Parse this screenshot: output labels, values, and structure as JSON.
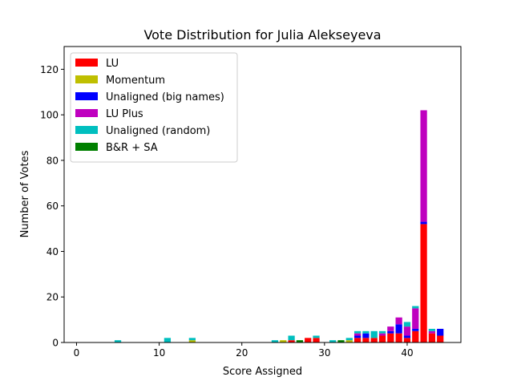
{
  "chart_data": {
    "type": "bar",
    "stacked": true,
    "title": "Vote Distribution for Julia Alekseyeva",
    "xlabel": "Score Assigned",
    "ylabel": "Number of Votes",
    "xlim": [
      -1.5,
      46.5
    ],
    "ylim": [
      0,
      130
    ],
    "xticks": [
      0,
      10,
      20,
      30,
      40
    ],
    "yticks": [
      0,
      20,
      40,
      60,
      80,
      100,
      120
    ],
    "legend_position": "top-left",
    "grid": false,
    "series": [
      {
        "name": "LU",
        "color": "#ff0000",
        "points": [
          [
            26,
            1
          ],
          [
            28,
            2
          ],
          [
            29,
            2
          ],
          [
            34,
            2
          ],
          [
            35,
            2
          ],
          [
            36,
            2
          ],
          [
            37,
            3
          ],
          [
            38,
            4
          ],
          [
            39,
            4
          ],
          [
            40,
            2
          ],
          [
            41,
            5
          ],
          [
            42,
            52
          ],
          [
            43,
            4
          ],
          [
            44,
            3
          ]
        ]
      },
      {
        "name": "Momentum",
        "color": "#bfbf00",
        "points": [
          [
            14,
            1
          ],
          [
            25,
            1
          ],
          [
            33,
            1
          ]
        ]
      },
      {
        "name": "Unaligned (big names)",
        "color": "#0000ff",
        "points": [
          [
            34,
            1
          ],
          [
            35,
            2
          ],
          [
            38,
            1
          ],
          [
            39,
            4
          ],
          [
            40,
            1
          ],
          [
            41,
            1
          ],
          [
            42,
            1
          ],
          [
            44,
            3
          ]
        ]
      },
      {
        "name": "LU Plus",
        "color": "#bf00bf",
        "points": [
          [
            34,
            1
          ],
          [
            37,
            1
          ],
          [
            38,
            2
          ],
          [
            39,
            3
          ],
          [
            40,
            4
          ],
          [
            41,
            9
          ],
          [
            42,
            49
          ],
          [
            43,
            1
          ]
        ]
      },
      {
        "name": "Unaligned (random)",
        "color": "#00bfbf",
        "points": [
          [
            5,
            1
          ],
          [
            11,
            2
          ],
          [
            14,
            1
          ],
          [
            24,
            1
          ],
          [
            26,
            2
          ],
          [
            29,
            1
          ],
          [
            31,
            1
          ],
          [
            33,
            1
          ],
          [
            34,
            1
          ],
          [
            35,
            1
          ],
          [
            36,
            3
          ],
          [
            37,
            1
          ],
          [
            40,
            2
          ],
          [
            41,
            1
          ],
          [
            43,
            1
          ]
        ]
      },
      {
        "name": "B&R + SA",
        "color": "#008000",
        "points": [
          [
            27,
            1
          ],
          [
            32,
            1
          ]
        ]
      }
    ]
  }
}
